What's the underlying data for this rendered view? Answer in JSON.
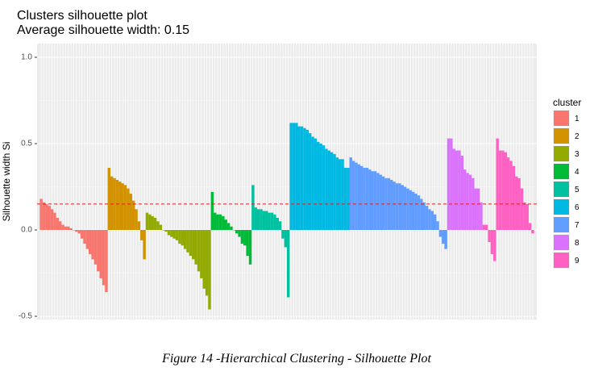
{
  "chart_data": {
    "type": "bar",
    "title": "Clusters silhouette plot",
    "subtitle": "Average silhouette width: 0.15",
    "xlabel": "",
    "ylabel": "Silhouette width Si",
    "ylim": [
      -0.5,
      1.0
    ],
    "yticks": [
      "1.0",
      "0.5",
      "0.0",
      "-0.5"
    ],
    "grid": true,
    "legend_position": "right",
    "legend_title": "cluster",
    "average_line": 0.15,
    "average_line_color": "#e41a1c",
    "clusters": [
      {
        "name": "1",
        "color": "#f8766d",
        "values": [
          0.18,
          0.16,
          0.15,
          0.14,
          0.12,
          0.1,
          0.07,
          0.05,
          0.03,
          0.02,
          0.02,
          0.01,
          0.0,
          -0.01,
          -0.02,
          -0.05,
          -0.08,
          -0.11,
          -0.14,
          -0.17,
          -0.2,
          -0.24,
          -0.28,
          -0.32,
          -0.36
        ]
      },
      {
        "name": "2",
        "color": "#d39200",
        "values": [
          0.36,
          0.31,
          0.3,
          0.29,
          0.28,
          0.27,
          0.26,
          0.24,
          0.21,
          0.17,
          0.12,
          0.05,
          -0.06,
          -0.17
        ]
      },
      {
        "name": "3",
        "color": "#93aa00",
        "values": [
          0.1,
          0.09,
          0.08,
          0.07,
          0.05,
          0.03,
          0.0,
          -0.01,
          -0.03,
          -0.04,
          -0.05,
          -0.06,
          -0.08,
          -0.09,
          -0.11,
          -0.13,
          -0.15,
          -0.17,
          -0.2,
          -0.24,
          -0.28,
          -0.34,
          -0.38,
          -0.46
        ]
      },
      {
        "name": "4",
        "color": "#00ba38",
        "values": [
          0.22,
          0.1,
          0.09,
          0.09,
          0.08,
          0.06,
          0.04,
          0.02,
          0.0,
          -0.02,
          -0.04,
          -0.08,
          -0.09,
          -0.15,
          -0.2
        ]
      },
      {
        "name": "5",
        "color": "#00c19f",
        "values": [
          0.26,
          0.13,
          0.12,
          0.12,
          0.11,
          0.11,
          0.1,
          0.1,
          0.09,
          0.07,
          0.05,
          -0.05,
          -0.1,
          -0.39
        ]
      },
      {
        "name": "6",
        "color": "#00b9e3",
        "values": [
          0.62,
          0.62,
          0.62,
          0.6,
          0.6,
          0.59,
          0.58,
          0.56,
          0.54,
          0.53,
          0.51,
          0.5,
          0.49,
          0.47,
          0.46,
          0.45,
          0.44,
          0.42,
          0.41,
          0.41,
          0.36,
          0.36
        ]
      },
      {
        "name": "7",
        "color": "#619cff",
        "values": [
          0.42,
          0.4,
          0.39,
          0.38,
          0.37,
          0.36,
          0.36,
          0.35,
          0.34,
          0.34,
          0.33,
          0.32,
          0.31,
          0.3,
          0.3,
          0.29,
          0.28,
          0.27,
          0.27,
          0.26,
          0.25,
          0.24,
          0.23,
          0.22,
          0.21,
          0.2,
          0.18,
          0.16,
          0.14,
          0.12,
          0.11,
          0.09,
          0.05,
          -0.04,
          -0.08,
          -0.11
        ]
      },
      {
        "name": "8",
        "color": "#db72fb",
        "values": [
          0.53,
          0.53,
          0.47,
          0.46,
          0.46,
          0.43,
          0.35,
          0.33,
          0.32,
          0.3,
          0.24,
          0.24,
          0.16
        ]
      },
      {
        "name": "9",
        "color": "#ff61c3",
        "values": [
          0.03,
          0.03,
          -0.07,
          -0.14,
          -0.18,
          0.53,
          0.46,
          0.46,
          0.45,
          0.42,
          0.4,
          0.37,
          0.31,
          0.3,
          0.24,
          0.16,
          0.15,
          0.04,
          -0.02
        ]
      }
    ]
  },
  "caption": "Figure 14 -Hierarchical Clustering - Silhouette Plot"
}
